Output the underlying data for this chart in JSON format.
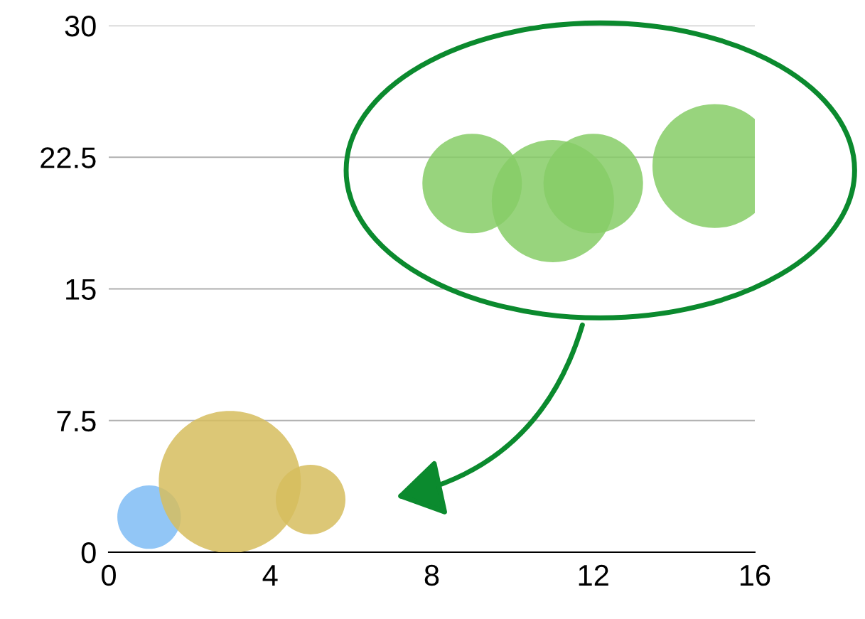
{
  "chart_data": {
    "type": "bubble",
    "series": [
      {
        "color": "#7fbcf5",
        "x": [
          1
        ],
        "values": [
          2
        ],
        "sizes": [
          0.2
        ]
      },
      {
        "color": "#d6bd5e",
        "x": [
          3,
          5
        ],
        "values": [
          4,
          3
        ],
        "sizes": [
          1,
          0.24
        ]
      },
      {
        "color": "#86cc66",
        "x": [
          9,
          11,
          12,
          15
        ],
        "values": [
          21,
          20,
          21,
          22
        ],
        "sizes": [
          0.49,
          0.74,
          0.49,
          0.76
        ]
      }
    ],
    "xlim": [
      0,
      16
    ],
    "xticks": [
      0,
      4,
      8,
      12,
      16
    ],
    "ylim": [
      0,
      30
    ],
    "yticks": [
      0,
      7.5,
      15,
      22.5,
      30
    ],
    "grid": "y"
  }
}
